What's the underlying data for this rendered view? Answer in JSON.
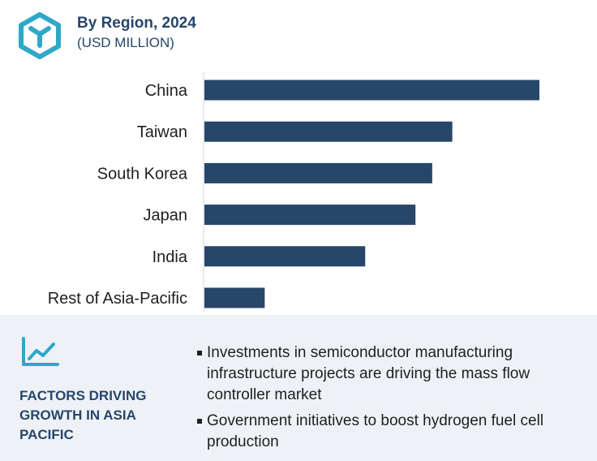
{
  "header": {
    "title": "By Region, 2024",
    "subtitle": "(USD MILLION)"
  },
  "chart_data": {
    "type": "bar",
    "orientation": "horizontal",
    "title": "By Region, 2024",
    "subtitle": "(USD MILLION)",
    "categories": [
      "China",
      "Taiwan",
      "South Korea",
      "Japan",
      "India",
      "Rest of Asia-Pacific"
    ],
    "values": [
      100,
      74,
      68,
      63,
      48,
      18
    ],
    "xlabel": "",
    "ylabel": "",
    "xlim": [
      0,
      100
    ],
    "grid": false,
    "legend": "none",
    "bar_color": "#26466a"
  },
  "footer": {
    "factors_title": "FACTORS DRIVING GROWTH IN ASIA PACIFIC",
    "bullets": [
      "Investments in semiconductor manufacturing infrastructure projects are driving the mass flow controller market",
      "Government initiatives to boost hydrogen fuel cell production"
    ]
  },
  "colors": {
    "accent": "#26466a",
    "logo": "#2fa8c8",
    "footer_bg": "#eef2f7"
  },
  "icons": {
    "logo": "hexagon-logo-icon",
    "trend": "trend-line-icon"
  }
}
